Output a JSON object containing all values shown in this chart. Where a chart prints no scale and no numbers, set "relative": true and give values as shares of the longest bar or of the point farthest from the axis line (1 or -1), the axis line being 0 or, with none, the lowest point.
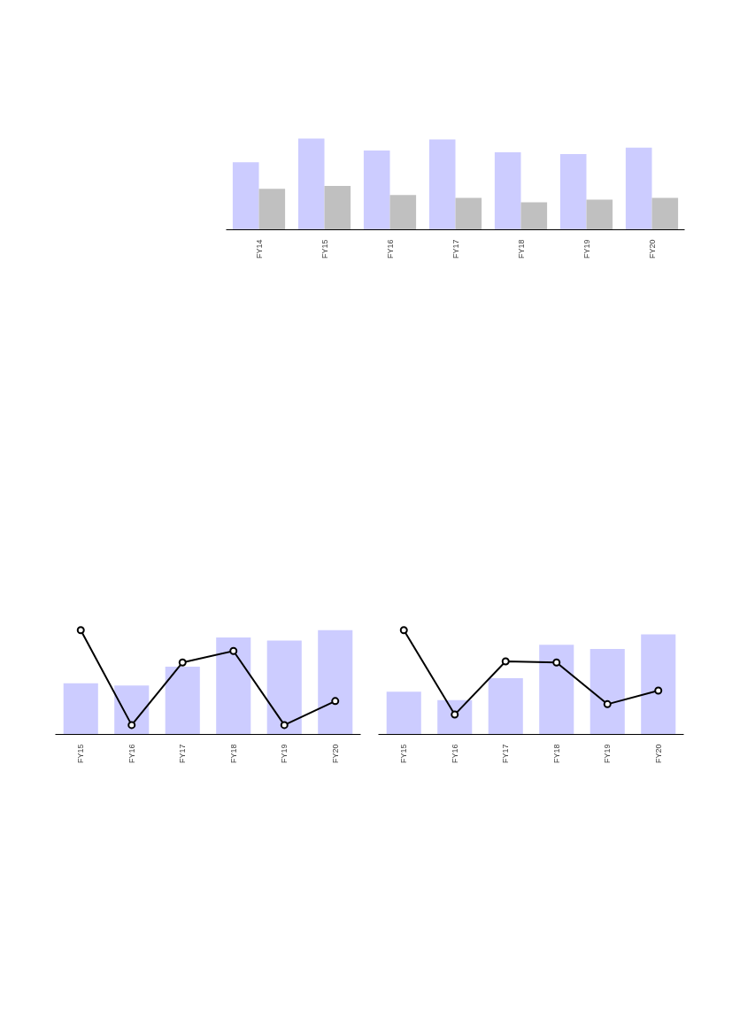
{
  "chart_data": [
    {
      "type": "bar",
      "relative": true,
      "categories": [
        "FY14",
        "FY15",
        "FY16",
        "FY17",
        "FY18",
        "FY19",
        "FY20"
      ],
      "grid": false,
      "series": [
        {
          "color": "#ccccff",
          "values": [
            0.74,
            1.0,
            0.87,
            0.99,
            0.85,
            0.83,
            0.9
          ]
        },
        {
          "color": "#c0c0c0",
          "values": [
            0.45,
            0.48,
            0.38,
            0.35,
            0.3,
            0.33,
            0.35
          ]
        }
      ]
    },
    {
      "type": "bar",
      "relative": true,
      "categories": [
        "FY15",
        "FY16",
        "FY17",
        "FY18",
        "FY19",
        "FY20"
      ],
      "grid": false,
      "series": [
        {
          "color": "#ccccff",
          "values": [
            0.49,
            0.47,
            0.65,
            0.93,
            0.9,
            1.0
          ]
        },
        {
          "type": "line",
          "color": "#000000",
          "marker": "circle",
          "values": [
            1.0,
            0.09,
            0.69,
            0.8,
            0.09,
            0.32
          ]
        }
      ]
    },
    {
      "type": "bar",
      "relative": true,
      "categories": [
        "FY15",
        "FY16",
        "FY17",
        "FY18",
        "FY19",
        "FY20"
      ],
      "grid": false,
      "series": [
        {
          "color": "#ccccff",
          "values": [
            0.41,
            0.33,
            0.54,
            0.86,
            0.82,
            0.96
          ]
        },
        {
          "type": "line",
          "color": "#000000",
          "marker": "circle",
          "values": [
            1.0,
            0.19,
            0.7,
            0.69,
            0.29,
            0.42
          ]
        }
      ]
    }
  ]
}
